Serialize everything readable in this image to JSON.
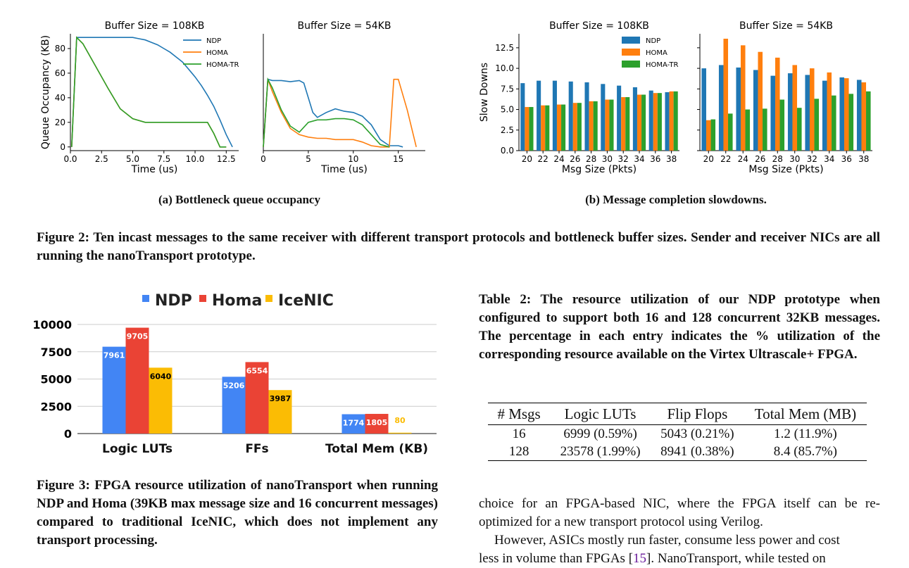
{
  "fig2": {
    "sub_a": "(a) Bottleneck queue occupancy",
    "sub_b": "(b) Message completion slowdowns.",
    "caption": "Figure 2: Ten incast messages to the same receiver with different transport protocols and bottleneck buffer sizes. Sender and receiver NICs are all running the nanoTransport prototype."
  },
  "fig3": {
    "caption": "Figure 3: FPGA resource utilization of nanoTransport when running NDP and Homa (39KB max message size and 16 concurrent messages) compared to traditional IceNIC, which does not implement any transport processing."
  },
  "table2": {
    "caption": "Table 2: The resource utilization of our NDP prototype when configured to support both 16 and 128 concurrent 32KB messages. The percentage in each entry indicates the % utilization of the corresponding resource available on the Virtex Ultrascale+ FPGA.",
    "headers": [
      "# Msgs",
      "Logic LUTs",
      "Flip Flops",
      "Total Mem (MB)"
    ],
    "rows": [
      [
        "16",
        "6999 (0.59%)",
        "5043 (0.21%)",
        "1.2 (11.9%)"
      ],
      [
        "128",
        "23578 (1.99%)",
        "8941 (0.38%)",
        "8.4 (85.7%)"
      ]
    ]
  },
  "body": {
    "p1": "choice for an FPGA-based NIC, where the FPGA itself can be re-optimized for a new transport protocol using Verilog.",
    "p2_line1": "However, ASICs mostly run faster, consume less power and cost",
    "p2_line2_pre": "less in volume than FPGAs [",
    "p2_ref": "15",
    "p2_line2_post": "]. NanoTransport, while tested on"
  },
  "colors": {
    "ndp_line": "#1f77b4",
    "homa_line": "#ff7f0e",
    "homatr_line": "#2ca02c",
    "ndp_bar": "#4285f4",
    "homa_bar": "#ea4335",
    "icenic_bar": "#fbbc04"
  },
  "chart_data": [
    {
      "type": "line",
      "title": "Buffer Size = 108KB",
      "xlabel": "Time (us)",
      "ylabel": "Queue Occupancy (KB)",
      "xlim": [
        0,
        13.5
      ],
      "ylim": [
        -3,
        92
      ],
      "xticks": [
        "0.0",
        "2.5",
        "5.0",
        "7.5",
        "10.0",
        "12.5"
      ],
      "yticks": [
        "0",
        "20",
        "40",
        "60",
        "80"
      ],
      "legend": "top-right",
      "series": [
        {
          "name": "NDP",
          "x": [
            0.1,
            0.5,
            1,
            2,
            3,
            4,
            5,
            5.5,
            6,
            6.5,
            7,
            7.5,
            8,
            8.5,
            9,
            9.5,
            10,
            10.5,
            11,
            11.5,
            12,
            12.5,
            13
          ],
          "y": [
            0,
            89,
            89,
            89,
            89,
            89,
            89,
            88,
            87,
            85,
            83,
            80,
            77,
            73,
            69,
            63,
            57,
            50,
            42,
            33,
            22,
            10,
            0
          ]
        },
        {
          "name": "HOMA",
          "x": [
            0.1,
            0.5,
            1,
            2,
            3,
            4,
            5,
            6,
            7,
            8,
            9,
            10,
            11,
            11.5,
            12,
            12.5
          ],
          "y": [
            0,
            89,
            84,
            66,
            48,
            31,
            23,
            20,
            20,
            20,
            20,
            20,
            20,
            11,
            0,
            0
          ]
        },
        {
          "name": "HOMA-TR",
          "x": [
            0.1,
            0.5,
            1,
            2,
            3,
            4,
            5,
            6,
            7,
            8,
            9,
            10,
            11,
            11.5,
            12,
            12.5
          ],
          "y": [
            0,
            89,
            84,
            66,
            48,
            31,
            23,
            20,
            20,
            20,
            20,
            20,
            20,
            11,
            0,
            0
          ]
        }
      ]
    },
    {
      "type": "line",
      "title": "Buffer Size = 54KB",
      "xlabel": "Time (us)",
      "ylabel": "",
      "xlim": [
        0,
        18
      ],
      "ylim": [
        -3,
        92
      ],
      "xticks": [
        "0",
        "5",
        "10",
        "15"
      ],
      "series": [
        {
          "name": "NDP",
          "x": [
            0,
            0.5,
            1,
            2,
            3,
            4,
            4.5,
            5,
            5.5,
            6,
            7,
            8,
            9,
            10,
            11,
            12,
            12.5,
            13,
            14,
            15,
            15.5
          ],
          "y": [
            0,
            55,
            54,
            54,
            53,
            54,
            52,
            40,
            28,
            24,
            28,
            31,
            29,
            28,
            25,
            18,
            12,
            6,
            1,
            1,
            0
          ]
        },
        {
          "name": "HOMA",
          "x": [
            0,
            0.5,
            1,
            2,
            3,
            4,
            5,
            6,
            7,
            8,
            9,
            10,
            11,
            12,
            13,
            14,
            14.5,
            15,
            16,
            17
          ],
          "y": [
            0,
            55,
            45,
            28,
            15,
            10,
            8,
            7,
            7,
            6,
            6,
            6,
            4,
            1,
            0,
            0,
            55,
            55,
            30,
            0
          ]
        },
        {
          "name": "HOMA-TR",
          "x": [
            0,
            0.5,
            1,
            2,
            3,
            4,
            5,
            6,
            7,
            8,
            9,
            10,
            11,
            12,
            13,
            14
          ],
          "y": [
            0,
            55,
            48,
            30,
            17,
            12,
            20,
            22,
            22,
            23,
            23,
            22,
            18,
            10,
            2,
            0
          ]
        }
      ]
    },
    {
      "type": "bar",
      "title": "Buffer Size = 108KB",
      "xlabel": "Msg Size (Pkts)",
      "ylabel": "Slow Downs",
      "ylim": [
        0,
        14.2
      ],
      "yticks": [
        "0.0",
        "2.5",
        "5.0",
        "7.5",
        "10.0",
        "12.5"
      ],
      "categories": [
        "20",
        "22",
        "24",
        "26",
        "28",
        "30",
        "32",
        "34",
        "36",
        "38"
      ],
      "legend": "top-right",
      "series": [
        {
          "name": "NDP",
          "values": [
            8.2,
            8.5,
            8.5,
            8.4,
            8.3,
            8.1,
            7.9,
            7.7,
            7.3,
            7.1
          ]
        },
        {
          "name": "HOMA",
          "values": [
            5.3,
            5.5,
            5.6,
            5.8,
            6.0,
            6.2,
            6.5,
            6.8,
            7.0,
            7.2
          ]
        },
        {
          "name": "HOMA-TR",
          "values": [
            5.3,
            5.5,
            5.6,
            5.8,
            6.0,
            6.2,
            6.5,
            6.8,
            7.0,
            7.2
          ]
        }
      ]
    },
    {
      "type": "bar",
      "title": "Buffer Size = 54KB",
      "xlabel": "Msg Size (Pkts)",
      "ylabel": "",
      "ylim": [
        0,
        14.2
      ],
      "categories": [
        "20",
        "22",
        "24",
        "26",
        "28",
        "30",
        "32",
        "34",
        "36",
        "38"
      ],
      "series": [
        {
          "name": "NDP",
          "values": [
            10.0,
            10.4,
            10.1,
            9.8,
            9.1,
            9.4,
            9.2,
            8.5,
            8.9,
            8.6
          ]
        },
        {
          "name": "HOMA",
          "values": [
            3.7,
            13.6,
            12.8,
            12.0,
            11.3,
            10.4,
            10.0,
            9.5,
            8.8,
            8.3
          ]
        },
        {
          "name": "HOMA-TR",
          "values": [
            3.8,
            4.5,
            5.0,
            5.1,
            6.2,
            5.2,
            6.3,
            6.7,
            6.9,
            7.2
          ]
        }
      ]
    },
    {
      "type": "bar",
      "title": "",
      "xlabel": "",
      "ylabel": "",
      "ylim": [
        0,
        10000
      ],
      "yticks": [
        "0",
        "2500",
        "5000",
        "7500",
        "10000"
      ],
      "legend": "top-center",
      "categories": [
        "Logic LUTs",
        "FFs",
        "Total Mem (KB)"
      ],
      "series": [
        {
          "name": "NDP",
          "values": [
            7961,
            5206,
            1774
          ],
          "labels": [
            "7961",
            "5206",
            "1774"
          ]
        },
        {
          "name": "Homa",
          "values": [
            9705,
            6554,
            1805
          ],
          "labels": [
            "9705",
            "6554",
            "1805"
          ]
        },
        {
          "name": "IceNIC",
          "values": [
            6040,
            3987,
            80
          ],
          "labels": [
            "6040",
            "3987",
            "80"
          ]
        }
      ]
    }
  ]
}
